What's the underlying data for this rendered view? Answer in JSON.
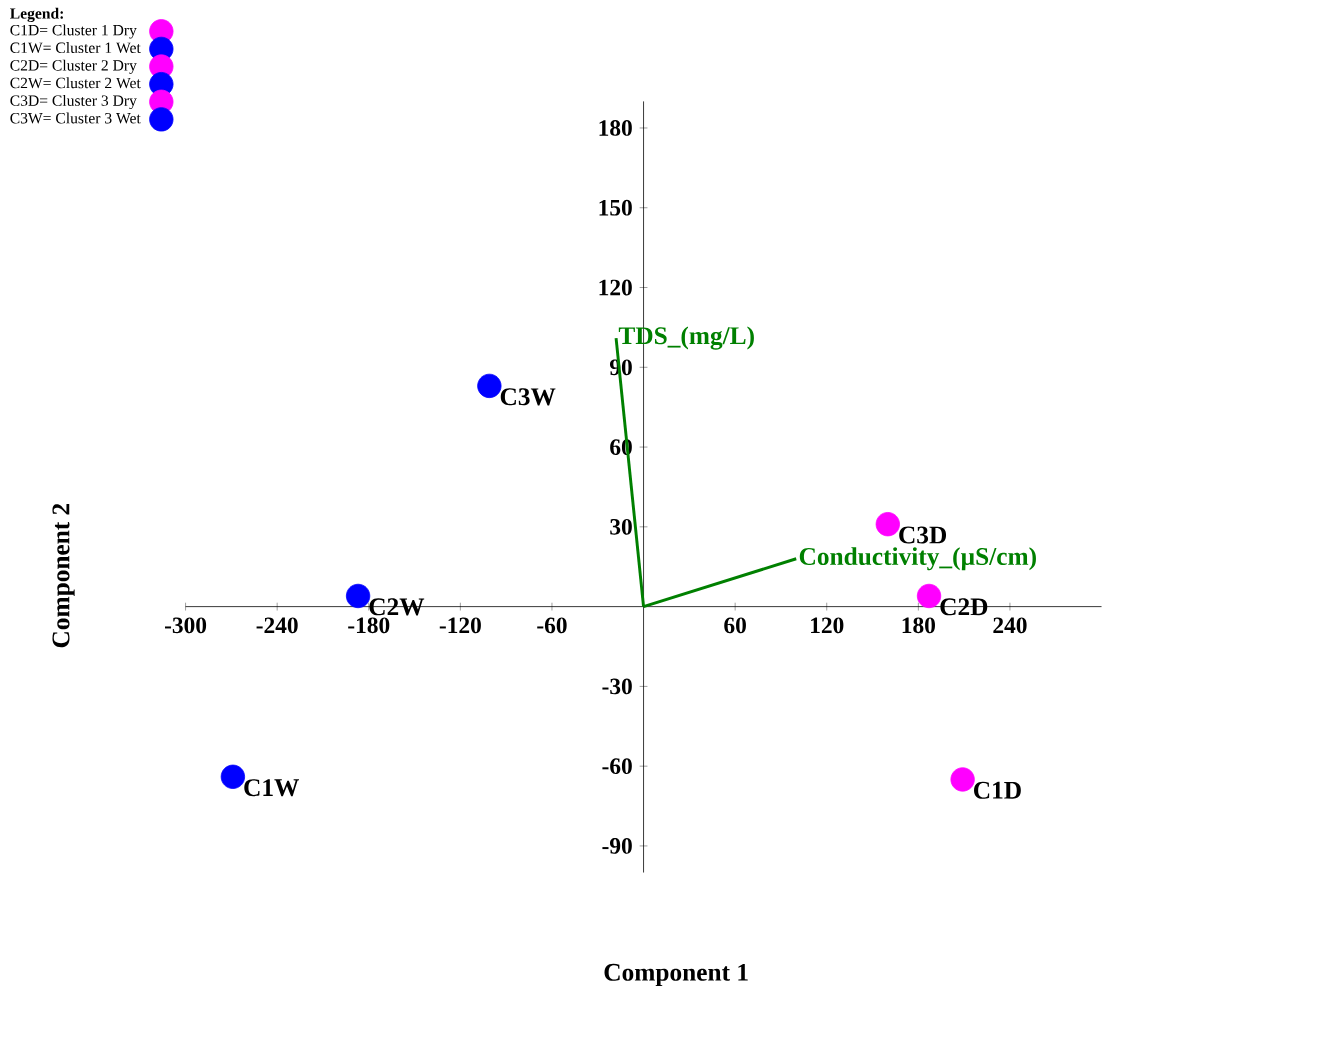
{
  "chart_data": {
    "type": "scatter",
    "xlabel": "Component 1",
    "ylabel": "Component 2",
    "legend_title": "Legend:",
    "legend": "top left",
    "grid": false,
    "xlim": [
      -300,
      300
    ],
    "ylim": [
      -100,
      190
    ],
    "xticks": [
      -300,
      -240,
      -180,
      -120,
      -60,
      60,
      120,
      180,
      240
    ],
    "yticks": [
      -90,
      -60,
      -30,
      30,
      60,
      90,
      120,
      150,
      180
    ],
    "series": [
      {
        "name": "C1D= Cluster 1 Dry",
        "color": "#ff00ff",
        "type": "scatter",
        "marker": "circle",
        "x": [
          209
        ],
        "values": [
          -65
        ]
      },
      {
        "name": "C1W= Cluster 1 Wet",
        "color": "#0000ff",
        "type": "scatter",
        "marker": "circle",
        "x": [
          -269
        ],
        "values": [
          -64
        ]
      },
      {
        "name": "C2D= Cluster 2 Dry",
        "color": "#ff00ff",
        "type": "scatter",
        "marker": "circle",
        "x": [
          187
        ],
        "values": [
          4
        ]
      },
      {
        "name": "C2W= Cluster 2 Wet",
        "color": "#0000ff",
        "type": "scatter",
        "marker": "circle",
        "x": [
          -187
        ],
        "values": [
          4
        ]
      },
      {
        "name": "C3D= Cluster 3 Dry",
        "color": "#ff00ff",
        "type": "scatter",
        "marker": "circle",
        "x": [
          160
        ],
        "values": [
          31
        ]
      },
      {
        "name": "C3W= Cluster 3 Wet",
        "color": "#0000ff",
        "type": "scatter",
        "marker": "circle",
        "x": [
          -101
        ],
        "values": [
          83
        ]
      },
      {
        "name": "TDS_(mg/L)",
        "color": "#008000",
        "type": "line",
        "marker": "none",
        "x": [
          0,
          -18
        ],
        "values": [
          0,
          101
        ]
      },
      {
        "name": "Conductivity_(µS/cm)",
        "color": "#008000",
        "type": "line",
        "marker": "none",
        "x": [
          0,
          100
        ],
        "values": [
          0,
          18
        ]
      }
    ],
    "annotations": [
      {
        "text": "C1D",
        "x": 209,
        "y": -65
      },
      {
        "text": "C1W",
        "x": -269,
        "y": -64
      },
      {
        "text": "C2D",
        "x": 187,
        "y": 4
      },
      {
        "text": "C2W",
        "x": -187,
        "y": 4
      },
      {
        "text": "C3D",
        "x": 160,
        "y": 31
      },
      {
        "text": "C3W",
        "x": -101,
        "y": 83
      }
    ]
  }
}
